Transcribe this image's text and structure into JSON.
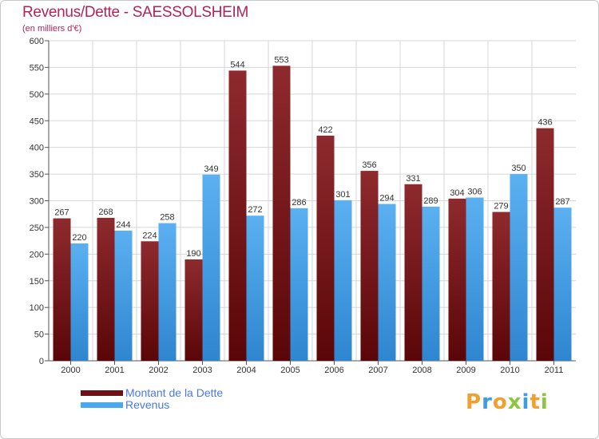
{
  "title": "Revenus/Dette - SAESSOLSHEIM",
  "subtitle": "(en milliers d'€)",
  "chart_data": {
    "type": "bar",
    "categories": [
      "2000",
      "2001",
      "2002",
      "2003",
      "2004",
      "2005",
      "2006",
      "2007",
      "2008",
      "2009",
      "2010",
      "2011"
    ],
    "series": [
      {
        "name": "Montant de la Dette",
        "values": [
          267,
          268,
          224,
          190,
          544,
          553,
          422,
          356,
          331,
          304,
          279,
          436
        ],
        "color": "#7a1418"
      },
      {
        "name": "Revenus",
        "values": [
          220,
          244,
          258,
          349,
          272,
          286,
          301,
          294,
          289,
          306,
          350,
          287
        ],
        "color": "#3e9be4"
      }
    ],
    "ylim": [
      0,
      600
    ],
    "yticks": [
      0,
      50,
      100,
      150,
      200,
      250,
      300,
      350,
      400,
      450,
      500,
      550,
      600
    ],
    "grid": true,
    "legend_position": "bottom-left",
    "data_labels": true
  },
  "legend": {
    "items": [
      {
        "label": "Montant de la Dette",
        "color": "#6e1015"
      },
      {
        "label": "Revenus",
        "color": "#4aa8ee"
      }
    ]
  },
  "logo": {
    "letters": [
      "P",
      "r",
      "o",
      "x",
      "i",
      "t",
      "i"
    ],
    "colors": [
      "#f0a030",
      "#3e9be4",
      "#f0a030",
      "#8cc63f",
      "#3e9be4",
      "#f0a030",
      "#8cc63f"
    ]
  }
}
